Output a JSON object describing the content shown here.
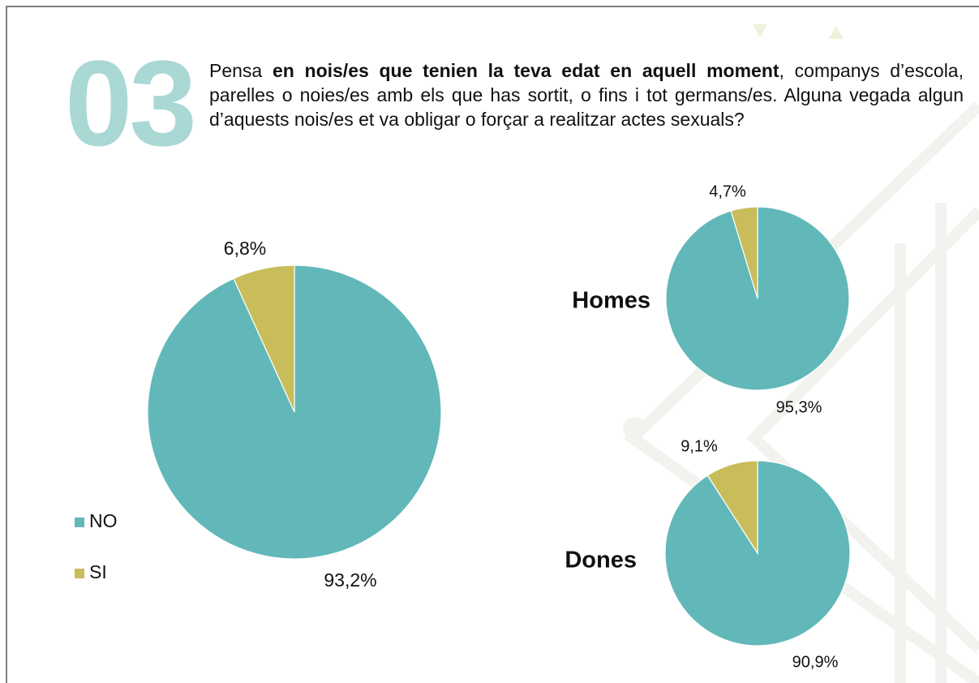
{
  "slide": {
    "number": "03",
    "question": [
      {
        "text": "Pensa ",
        "bold": false
      },
      {
        "text": "en nois/es que tenien la teva edat en aquell moment",
        "bold": true
      },
      {
        "text": ", companys d’escola, parelles o noies/es amb els que has sortit, o fins i tot germans/es. Alguna vegada algun d’aquests nois/es et va obligar o forçar a realitzar actes sexuals?",
        "bold": false
      }
    ]
  },
  "chart_data": [
    {
      "type": "pie",
      "categories": [
        "NO",
        "SI"
      ],
      "colors": [
        "#62b8b8",
        "#c9bd5b"
      ],
      "values": [
        93.2,
        6.8
      ],
      "value_labels": [
        "93,2%",
        "6,8%"
      ],
      "legend": true
    },
    {
      "type": "pie",
      "title": "Homes",
      "categories": [
        "NO",
        "SI"
      ],
      "colors": [
        "#62b8b8",
        "#c9bd5b"
      ],
      "values": [
        95.3,
        4.7
      ],
      "value_labels": [
        "95,3%",
        "4,7%"
      ],
      "legend": false
    },
    {
      "type": "pie",
      "title": "Dones",
      "categories": [
        "NO",
        "SI"
      ],
      "colors": [
        "#62b8b8",
        "#c9bd5b"
      ],
      "values": [
        90.9,
        9.1
      ],
      "value_labels": [
        "90,9%",
        "9,1%"
      ],
      "legend": false
    }
  ]
}
